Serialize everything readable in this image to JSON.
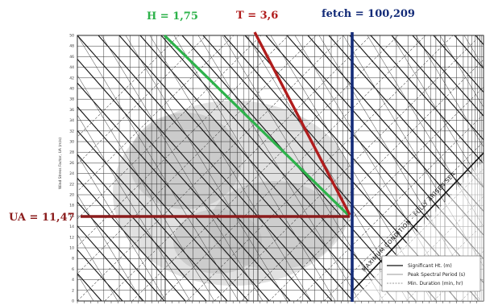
{
  "chart_data": {
    "type": "line",
    "title": "",
    "ylabel": "Wind Stress Factor, UA (m/s)",
    "xlabel": "",
    "annotations": [
      {
        "label": "H = 1,75",
        "color": "#2db24a"
      },
      {
        "label": "T = 3,6",
        "color": "#b01c1c"
      },
      {
        "label": "fetch = 100,209",
        "color": "#132b78"
      },
      {
        "label": "UA = 11,47",
        "color": "#8b1c1c"
      }
    ],
    "diagonal_label": "MAXIMUM CONDITION - FULLY ARISEN SEA",
    "legend": [
      {
        "name": "Significant Ht. (m)",
        "style": "solid"
      },
      {
        "name": "Peak Spectral Period (s)",
        "style": "thin"
      },
      {
        "name": "Min. Duration (min, hr)",
        "style": "dashed"
      }
    ],
    "y_ticks": [
      "50",
      "48",
      "46",
      "44",
      "42",
      "40",
      "38",
      "36",
      "34",
      "32",
      "30",
      "28",
      "26",
      "24",
      "22",
      "20",
      "18",
      "16",
      "14",
      "12",
      "10",
      "8",
      "6",
      "4",
      "2",
      "0"
    ],
    "colors": {
      "height_line": "#2db24a",
      "period_line": "#b01c1c",
      "fetch_line": "#132b78",
      "ua_line": "#8b1c1c",
      "grid": "#2a2a2a",
      "watermark": "#c8c8c8"
    }
  }
}
